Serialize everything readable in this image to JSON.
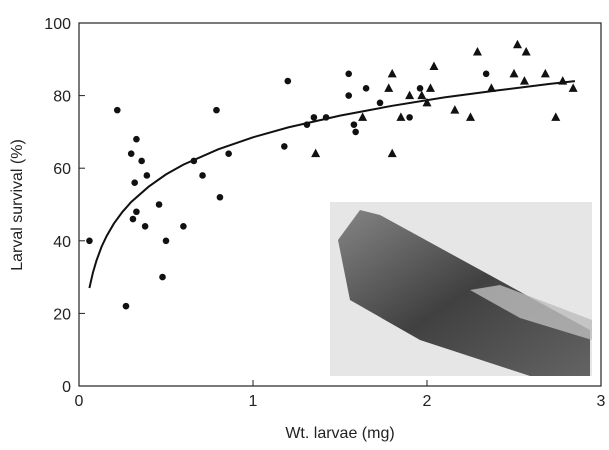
{
  "chart_data": {
    "type": "scatter",
    "x_label": "Wt. larvae (mg)",
    "y_label": "Larval survival (%)",
    "xlim": [
      0,
      3
    ],
    "xticks": [
      0,
      1,
      2,
      3
    ],
    "ylim": [
      0,
      100
    ],
    "yticks": [
      0,
      20,
      40,
      60,
      80,
      100
    ],
    "series": [
      {
        "marker": "circle",
        "color": "#111111",
        "x": [
          0.06,
          0.22,
          0.27,
          0.3,
          0.31,
          0.32,
          0.33,
          0.33,
          0.36,
          0.38,
          0.39,
          0.46,
          0.48,
          0.5,
          0.6,
          0.66,
          0.71,
          0.79,
          0.81,
          0.86,
          1.18,
          1.2,
          1.31,
          1.35,
          1.42,
          1.55,
          1.55,
          1.58,
          1.59,
          1.65,
          1.73,
          1.9,
          1.96,
          2.34
        ],
        "values": [
          40,
          76,
          22,
          64,
          46,
          56,
          68,
          48,
          62,
          44,
          58,
          50,
          30,
          40,
          44,
          62,
          58,
          76,
          52,
          64,
          66,
          84,
          72,
          74,
          74,
          86,
          80,
          72,
          70,
          82,
          78,
          74,
          82,
          86
        ]
      },
      {
        "marker": "triangle",
        "color": "#111111",
        "x": [
          1.36,
          1.63,
          1.78,
          1.8,
          1.8,
          1.85,
          1.9,
          1.97,
          2.0,
          2.02,
          2.04,
          2.16,
          2.25,
          2.29,
          2.37,
          2.5,
          2.52,
          2.56,
          2.57,
          2.68,
          2.74,
          2.78,
          2.84
        ],
        "values": [
          64,
          74,
          82,
          86,
          64,
          74,
          80,
          80,
          78,
          82,
          88,
          76,
          74,
          92,
          82,
          86,
          94,
          84,
          92,
          86,
          74,
          84,
          82
        ]
      }
    ],
    "curve": {
      "color": "#111111",
      "x": [
        0.06,
        0.08,
        0.1,
        0.13,
        0.16,
        0.2,
        0.25,
        0.3,
        0.4,
        0.5,
        0.6,
        0.8,
        1.0,
        1.2,
        1.5,
        1.8,
        2.1,
        2.4,
        2.7,
        2.85
      ],
      "values": [
        27,
        31.2,
        34.5,
        38.4,
        41.4,
        44.7,
        48,
        50.7,
        54.9,
        58.3,
        61,
        65.2,
        68.5,
        71.2,
        74.5,
        77.2,
        79.5,
        81.4,
        83.2,
        84
      ]
    }
  }
}
